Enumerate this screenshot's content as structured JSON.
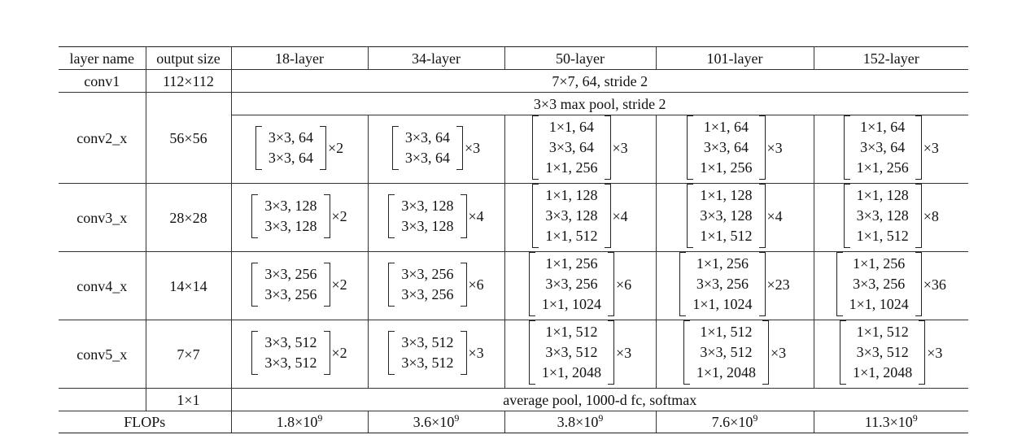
{
  "headers": [
    "layer name",
    "output size",
    "18-layer",
    "34-layer",
    "50-layer",
    "101-layer",
    "152-layer"
  ],
  "conv1": {
    "name": "conv1",
    "size": "112×112",
    "desc": "7×7, 64, stride 2"
  },
  "pool_row": {
    "desc": "3×3 max pool, stride 2"
  },
  "stages": [
    {
      "name": "conv2_x",
      "size": "56×56",
      "blocks": [
        {
          "lines": [
            "3×3, 64",
            "3×3, 64"
          ],
          "mult": "×2"
        },
        {
          "lines": [
            "3×3, 64",
            "3×3, 64"
          ],
          "mult": "×3"
        },
        {
          "lines": [
            "1×1, 64",
            "3×3, 64",
            "1×1, 256"
          ],
          "mult": "×3"
        },
        {
          "lines": [
            "1×1, 64",
            "3×3, 64",
            "1×1, 256"
          ],
          "mult": "×3"
        },
        {
          "lines": [
            "1×1, 64",
            "3×3, 64",
            "1×1, 256"
          ],
          "mult": "×3"
        }
      ]
    },
    {
      "name": "conv3_x",
      "size": "28×28",
      "blocks": [
        {
          "lines": [
            "3×3, 128",
            "3×3, 128"
          ],
          "mult": "×2"
        },
        {
          "lines": [
            "3×3, 128",
            "3×3, 128"
          ],
          "mult": "×4"
        },
        {
          "lines": [
            "1×1, 128",
            "3×3, 128",
            "1×1, 512"
          ],
          "mult": "×4"
        },
        {
          "lines": [
            "1×1, 128",
            "3×3, 128",
            "1×1, 512"
          ],
          "mult": "×4"
        },
        {
          "lines": [
            "1×1, 128",
            "3×3, 128",
            "1×1, 512"
          ],
          "mult": "×8"
        }
      ]
    },
    {
      "name": "conv4_x",
      "size": "14×14",
      "blocks": [
        {
          "lines": [
            "3×3, 256",
            "3×3, 256"
          ],
          "mult": "×2"
        },
        {
          "lines": [
            "3×3, 256",
            "3×3, 256"
          ],
          "mult": "×6"
        },
        {
          "lines": [
            "1×1, 256",
            "3×3, 256",
            "1×1, 1024"
          ],
          "mult": "×6"
        },
        {
          "lines": [
            "1×1, 256",
            "3×3, 256",
            "1×1, 1024"
          ],
          "mult": "×23"
        },
        {
          "lines": [
            "1×1, 256",
            "3×3, 256",
            "1×1, 1024"
          ],
          "mult": "×36"
        }
      ]
    },
    {
      "name": "conv5_x",
      "size": "7×7",
      "blocks": [
        {
          "lines": [
            "3×3, 512",
            "3×3, 512"
          ],
          "mult": "×2"
        },
        {
          "lines": [
            "3×3, 512",
            "3×3, 512"
          ],
          "mult": "×3"
        },
        {
          "lines": [
            "1×1, 512",
            "3×3, 512",
            "1×1, 2048"
          ],
          "mult": "×3"
        },
        {
          "lines": [
            "1×1, 512",
            "3×3, 512",
            "1×1, 2048"
          ],
          "mult": "×3"
        },
        {
          "lines": [
            "1×1, 512",
            "3×3, 512",
            "1×1, 2048"
          ],
          "mult": "×3"
        }
      ]
    }
  ],
  "final_row": {
    "size": "1×1",
    "desc": "average pool, 1000-d fc, softmax"
  },
  "flops": {
    "label": "FLOPs",
    "values": [
      {
        "mantissa": "1.8×10",
        "exp": "9"
      },
      {
        "mantissa": "3.6×10",
        "exp": "9"
      },
      {
        "mantissa": "3.8×10",
        "exp": "9"
      },
      {
        "mantissa": "7.6×10",
        "exp": "9"
      },
      {
        "mantissa": "11.3×10",
        "exp": "9"
      }
    ]
  }
}
